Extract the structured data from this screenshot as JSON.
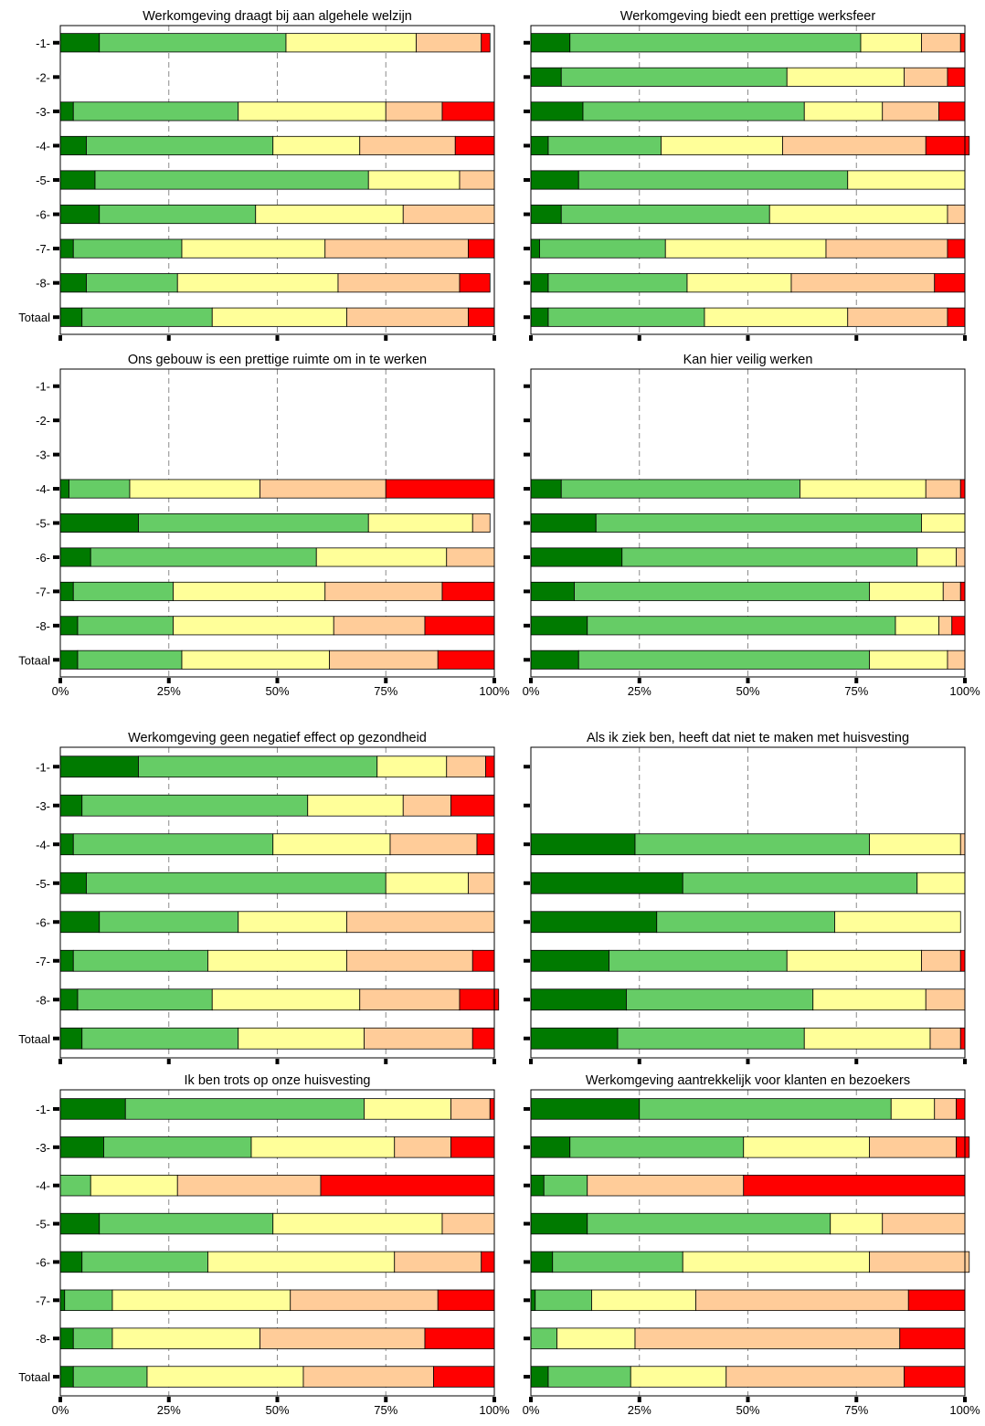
{
  "chart_data": [
    {
      "type": "bar",
      "stacked": true,
      "orientation": "horizontal",
      "title": "Werkomgeving draagt bij aan algehele welzijn",
      "categories": [
        "-1-",
        "-2-",
        "-3-",
        "-4-",
        "-5-",
        "-6-",
        "-7-",
        "-8-",
        "Totaal"
      ],
      "series_values": [
        [
          9,
          43,
          30,
          15,
          2
        ],
        null,
        [
          3,
          38,
          34,
          13,
          12
        ],
        [
          6,
          43,
          20,
          22,
          9
        ],
        [
          8,
          63,
          21,
          8,
          0
        ],
        [
          9,
          36,
          34,
          21,
          0
        ],
        [
          3,
          25,
          33,
          33,
          6
        ],
        [
          6,
          21,
          37,
          28,
          7
        ],
        [
          5,
          30,
          31,
          28,
          6
        ]
      ],
      "xlim": [
        0,
        100
      ],
      "xticks": [
        "0%",
        "25%",
        "50%",
        "75%",
        "100%"
      ],
      "grid": true
    },
    {
      "type": "bar",
      "stacked": true,
      "orientation": "horizontal",
      "title": "Werkomgeving biedt een prettige werksfeer",
      "categories": [
        "-1-",
        "-2-",
        "-3-",
        "-4-",
        "-5-",
        "-6-",
        "-7-",
        "-8-",
        "Totaal"
      ],
      "series_values": [
        [
          9,
          67,
          14,
          9,
          1
        ],
        [
          7,
          52,
          27,
          10,
          4
        ],
        [
          12,
          51,
          18,
          13,
          6
        ],
        [
          4,
          26,
          28,
          33,
          10
        ],
        [
          11,
          62,
          27,
          0,
          0
        ],
        [
          7,
          48,
          41,
          4,
          0
        ],
        [
          2,
          29,
          37,
          28,
          4
        ],
        [
          4,
          32,
          24,
          33,
          7
        ],
        [
          4,
          36,
          33,
          23,
          4
        ]
      ],
      "xlim": [
        0,
        100
      ],
      "xticks": [
        "0%",
        "25%",
        "50%",
        "75%",
        "100%"
      ],
      "grid": true
    },
    {
      "type": "bar",
      "stacked": true,
      "orientation": "horizontal",
      "title": "Ons gebouw is een prettige ruimte om in te werken",
      "categories": [
        "-1-",
        "-2-",
        "-3-",
        "-4-",
        "-5-",
        "-6-",
        "-7-",
        "-8-",
        "Totaal"
      ],
      "series_values": [
        null,
        null,
        null,
        [
          2,
          14,
          30,
          29,
          25
        ],
        [
          18,
          53,
          24,
          4,
          0
        ],
        [
          7,
          52,
          30,
          11,
          0
        ],
        [
          3,
          23,
          35,
          27,
          12
        ],
        [
          4,
          22,
          37,
          21,
          16
        ],
        [
          4,
          24,
          34,
          25,
          13
        ]
      ],
      "xlim": [
        0,
        100
      ],
      "xticks": [
        "0%",
        "25%",
        "50%",
        "75%",
        "100%"
      ],
      "xtick_labels_visible": true,
      "grid": true
    },
    {
      "type": "bar",
      "stacked": true,
      "orientation": "horizontal",
      "title": "Kan hier veilig werken",
      "categories": [
        "-1-",
        "-2-",
        "-3-",
        "-4-",
        "-5-",
        "-6-",
        "-7-",
        "-8-",
        "Totaal"
      ],
      "series_values": [
        null,
        null,
        null,
        [
          7,
          55,
          29,
          8,
          1
        ],
        [
          15,
          75,
          10,
          0,
          0
        ],
        [
          21,
          68,
          9,
          2,
          0
        ],
        [
          10,
          68,
          17,
          4,
          1
        ],
        [
          13,
          71,
          10,
          3,
          3
        ],
        [
          11,
          67,
          18,
          4,
          0
        ]
      ],
      "xlim": [
        0,
        100
      ],
      "xticks": [
        "0%",
        "25%",
        "50%",
        "75%",
        "100%"
      ],
      "xtick_labels_visible": true,
      "grid": true
    },
    {
      "type": "bar",
      "stacked": true,
      "orientation": "horizontal",
      "title": "Werkomgeving geen negatief effect op gezondheid",
      "categories": [
        "-1-",
        "-3-",
        "-4-",
        "-5-",
        "-6-",
        "-7-",
        "-8-",
        "Totaal"
      ],
      "series_values": [
        [
          18,
          55,
          16,
          9,
          2
        ],
        [
          5,
          52,
          22,
          11,
          10
        ],
        [
          3,
          46,
          27,
          20,
          4
        ],
        [
          6,
          69,
          19,
          6,
          0
        ],
        [
          9,
          32,
          25,
          34,
          0
        ],
        [
          3,
          31,
          32,
          29,
          5
        ],
        [
          4,
          31,
          34,
          23,
          9
        ],
        [
          5,
          36,
          29,
          25,
          5
        ]
      ],
      "xlim": [
        0,
        100
      ],
      "xticks": [
        "0%",
        "25%",
        "50%",
        "75%",
        "100%"
      ],
      "grid": true
    },
    {
      "type": "bar",
      "stacked": true,
      "orientation": "horizontal",
      "title": "Als ik ziek ben, heeft dat niet te maken met huisvesting",
      "categories": [
        "-1-",
        "-3-",
        "-4-",
        "-5-",
        "-6-",
        "-7-",
        "-8-",
        "Totaal"
      ],
      "series_values": [
        null,
        null,
        [
          24,
          54,
          21,
          1,
          0
        ],
        [
          35,
          54,
          11,
          0,
          0
        ],
        [
          29,
          41,
          29,
          0,
          0
        ],
        [
          18,
          41,
          31,
          9,
          1
        ],
        [
          22,
          43,
          26,
          9,
          0
        ],
        [
          20,
          43,
          29,
          7,
          1
        ]
      ],
      "xlim": [
        0,
        100
      ],
      "xticks": [
        "0%",
        "25%",
        "50%",
        "75%",
        "100%"
      ],
      "grid": true
    },
    {
      "type": "bar",
      "stacked": true,
      "orientation": "horizontal",
      "title": "Ik ben trots op onze huisvesting",
      "categories": [
        "-1-",
        "-3-",
        "-4-",
        "-5-",
        "-6-",
        "-7-",
        "-8-",
        "Totaal"
      ],
      "series_values": [
        [
          15,
          55,
          20,
          9,
          1
        ],
        [
          10,
          34,
          33,
          13,
          10
        ],
        [
          0,
          7,
          20,
          33,
          40
        ],
        [
          9,
          40,
          39,
          12,
          0
        ],
        [
          5,
          29,
          43,
          20,
          3
        ],
        [
          1,
          11,
          41,
          34,
          13
        ],
        [
          3,
          9,
          34,
          38,
          16
        ],
        [
          3,
          17,
          36,
          30,
          14
        ]
      ],
      "xlim": [
        0,
        100
      ],
      "xticks": [
        "0%",
        "25%",
        "50%",
        "75%",
        "100%"
      ],
      "xtick_labels_visible": true,
      "grid": true
    },
    {
      "type": "bar",
      "stacked": true,
      "orientation": "horizontal",
      "title": "Werkomgeving aantrekkelijk voor klanten en bezoekers",
      "categories": [
        "-1-",
        "-3-",
        "-4-",
        "-5-",
        "-6-",
        "-7-",
        "-8-",
        "Totaal"
      ],
      "series_values": [
        [
          25,
          58,
          10,
          5,
          2
        ],
        [
          9,
          40,
          29,
          20,
          3
        ],
        [
          3,
          10,
          0,
          36,
          51
        ],
        [
          13,
          56,
          12,
          19,
          0
        ],
        [
          5,
          30,
          43,
          23,
          0
        ],
        [
          1,
          13,
          24,
          49,
          13
        ],
        [
          0,
          6,
          18,
          61,
          15
        ],
        [
          4,
          19,
          22,
          41,
          14
        ]
      ],
      "xlim": [
        0,
        100
      ],
      "xticks": [
        "0%",
        "25%",
        "50%",
        "75%",
        "100%"
      ],
      "xtick_labels_visible": true,
      "grid": true
    }
  ],
  "segment_colors": [
    "#007a00",
    "#66cc66",
    "#ffff99",
    "#ffcc99",
    "#ff0000"
  ]
}
